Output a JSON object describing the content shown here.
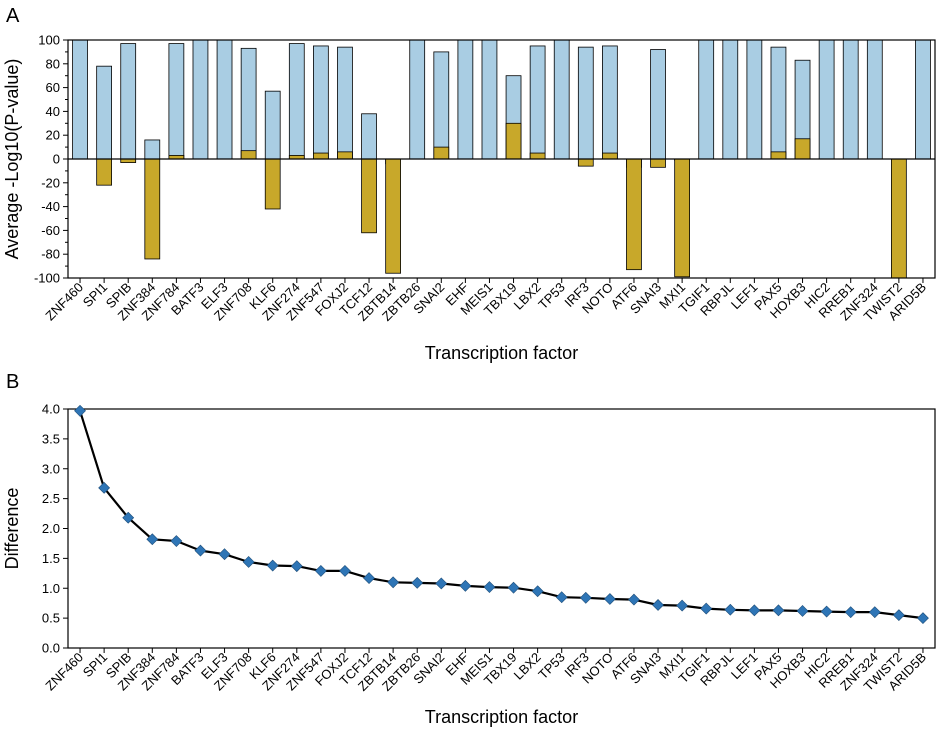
{
  "chart_data": [
    {
      "panel_label": "A",
      "type": "bar",
      "stacked": true,
      "title": "",
      "xlabel": "Transcription factor",
      "ylabel": "Average -Log10(P-value)",
      "ylim": [
        -100,
        100
      ],
      "yticks": [
        -100,
        -80,
        -60,
        -40,
        -20,
        0,
        20,
        40,
        60,
        80,
        100
      ],
      "categories": [
        "ZNF460",
        "SPI1",
        "SPIB",
        "ZNF384",
        "ZNF784",
        "BATF3",
        "ELF3",
        "ZNF708",
        "KLF6",
        "ZNF274",
        "ZNF547",
        "FOXJ2",
        "TCF12",
        "ZBTB14",
        "ZBTB26",
        "SNAI2",
        "EHF",
        "MEIS1",
        "TBX19",
        "LBX2",
        "TP53",
        "IRF3",
        "NOTO",
        "ATF6",
        "SNAI3",
        "MXI1",
        "TGIF1",
        "RBPJL",
        "LEF1",
        "PAX5",
        "HOXB3",
        "HIC2",
        "RREB1",
        "ZNF324",
        "TWIST2",
        "ARID5B"
      ],
      "series": [
        {
          "name": "blue",
          "color": "#a9cde3",
          "values": [
            100,
            78,
            97,
            16,
            97,
            100,
            100,
            93,
            57,
            97,
            95,
            94,
            38,
            -4,
            100,
            90,
            100,
            100,
            70,
            95,
            100,
            94,
            95,
            -7,
            92,
            -1,
            100,
            100,
            100,
            94,
            83,
            100,
            100,
            100,
            0,
            100
          ]
        },
        {
          "name": "gold",
          "color": "#c8a82a",
          "values": [
            0,
            -22,
            -3,
            -84,
            3,
            0,
            0,
            7,
            -42,
            3,
            5,
            6,
            -62,
            -96,
            0,
            10,
            0,
            0,
            30,
            5,
            0,
            -6,
            5,
            -93,
            -7,
            -99,
            0,
            0,
            0,
            6,
            17,
            0,
            0,
            0,
            -100,
            0
          ]
        }
      ]
    },
    {
      "panel_label": "B",
      "type": "line",
      "title": "",
      "xlabel": "Transcription factor",
      "ylabel": "Difference",
      "ylim": [
        0.0,
        4.0
      ],
      "yticks": [
        "0.0",
        "0.5",
        "1.0",
        "1.5",
        "2.0",
        "2.5",
        "3.0",
        "3.5",
        "4.0"
      ],
      "marker": "diamond",
      "marker_color": "#2e75b6",
      "line_color": "#000000",
      "categories": [
        "ZNF460",
        "SPI1",
        "SPIB",
        "ZNF384",
        "ZNF784",
        "BATF3",
        "ELF3",
        "ZNF708",
        "KLF6",
        "ZNF274",
        "ZNF547",
        "FOXJ2",
        "TCF12",
        "ZBTB14",
        "ZBTB26",
        "SNAI2",
        "EHF",
        "MEIS1",
        "TBX19",
        "LBX2",
        "TP53",
        "IRF3",
        "NOTO",
        "ATF6",
        "SNAI3",
        "MXI1",
        "TGIF1",
        "RBPJL",
        "LEF1",
        "PAX5",
        "HOXB3",
        "HIC2",
        "RREB1",
        "ZNF324",
        "TWIST2",
        "ARID5B"
      ],
      "values": [
        3.97,
        2.68,
        2.18,
        1.82,
        1.79,
        1.63,
        1.57,
        1.44,
        1.38,
        1.37,
        1.29,
        1.29,
        1.17,
        1.1,
        1.09,
        1.08,
        1.04,
        1.02,
        1.01,
        0.95,
        0.85,
        0.84,
        0.82,
        0.81,
        0.72,
        0.71,
        0.66,
        0.64,
        0.63,
        0.63,
        0.62,
        0.61,
        0.6,
        0.6,
        0.55,
        0.5
      ]
    }
  ]
}
